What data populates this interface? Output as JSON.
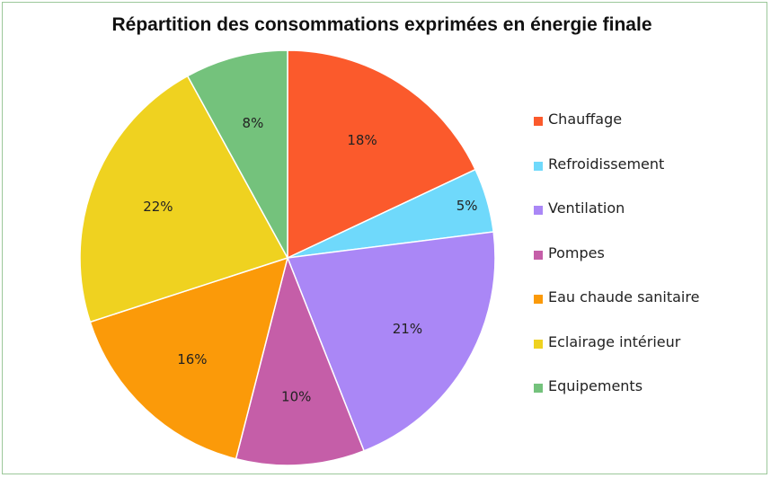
{
  "chart_data": {
    "type": "pie",
    "title": "Répartition des consommations exprimées en énergie finale",
    "legend_position": "right",
    "slices": [
      {
        "name": "Chauffage",
        "value": 18,
        "label": "18%",
        "color": "#fb5a2c"
      },
      {
        "name": "Refroidissement",
        "value": 5,
        "label": "5%",
        "color": "#6fd9fb"
      },
      {
        "name": "Ventilation",
        "value": 21,
        "label": "21%",
        "color": "#aa87f6"
      },
      {
        "name": "Pompes",
        "value": 10,
        "label": "10%",
        "color": "#c55ea8"
      },
      {
        "name": "Eau chaude sanitaire",
        "value": 16,
        "label": "16%",
        "color": "#fb9a09"
      },
      {
        "name": "Eclairage intérieur",
        "value": 22,
        "label": "22%",
        "color": "#efd220"
      },
      {
        "name": "Equipements",
        "value": 8,
        "label": "8%",
        "color": "#74c27c"
      }
    ]
  }
}
